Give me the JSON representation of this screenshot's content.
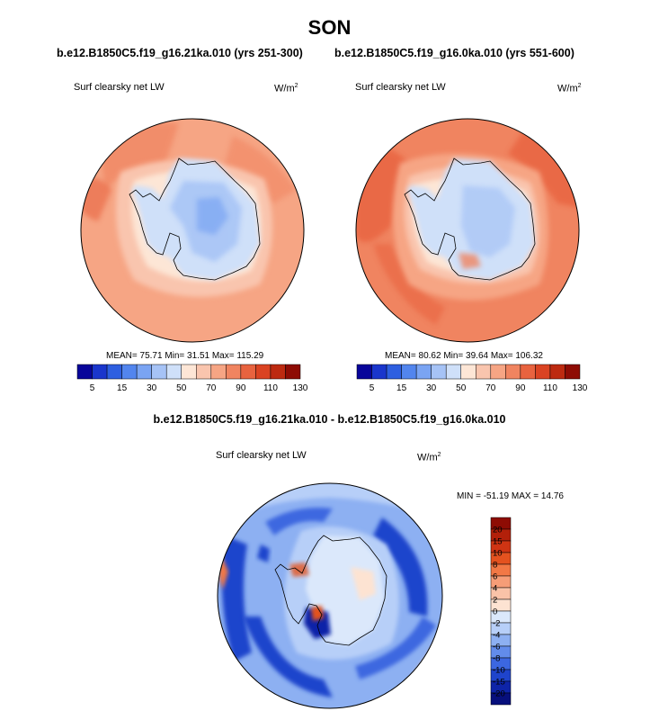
{
  "title": "SON",
  "runs": {
    "left": "b.e12.B1850C5.f19_g16.21ka.010 (yrs 251-300)",
    "right": "b.e12.B1850C5.f19_g16.0ka.010 (yrs 551-600)"
  },
  "diff_title": "b.e12.B1850C5.f19_g16.21ka.010 - b.e12.B1850C5.f19_g16.0ka.010",
  "variable": "Surf clearsky net LW",
  "units": {
    "base": "W/m",
    "exp": "2"
  },
  "panels": {
    "left": {
      "stats": "MEAN=  75.71  Min=  31.51  Max= 115.29"
    },
    "right": {
      "stats": "MEAN=  80.62  Min=  39.64  Max= 106.32"
    },
    "diff": {
      "stats": "MIN = -51.19 MAX =  14.76"
    }
  },
  "colorbar_main": {
    "colors": [
      "#08059a",
      "#1a36cc",
      "#2e5fe0",
      "#5285ee",
      "#7aa4f3",
      "#a6c3f6",
      "#cfe0f9",
      "#fde6d6",
      "#f9c5ae",
      "#f6a584",
      "#f08460",
      "#e8633f",
      "#da4322",
      "#bd2a10",
      "#8e0c04"
    ],
    "ticks": [
      "5",
      "15",
      "30",
      "50",
      "70",
      "90",
      "110",
      "130"
    ]
  },
  "colorbar_diff": {
    "colors": [
      "#8e0c04",
      "#b3200a",
      "#cf3413",
      "#e4521f",
      "#f27845",
      "#f69d77",
      "#fac3a8",
      "#fde3d2",
      "#dbe8fb",
      "#b7cff8",
      "#8db0f2",
      "#628ceb",
      "#3c67e0",
      "#1f44cc",
      "#0e24a8",
      "#070f7c"
    ],
    "labels": [
      "20",
      "15",
      "10",
      "8",
      "6",
      "4",
      "2",
      "0",
      "-2",
      "-4",
      "-6",
      "-8",
      "-10",
      "-15",
      "-20"
    ]
  }
}
